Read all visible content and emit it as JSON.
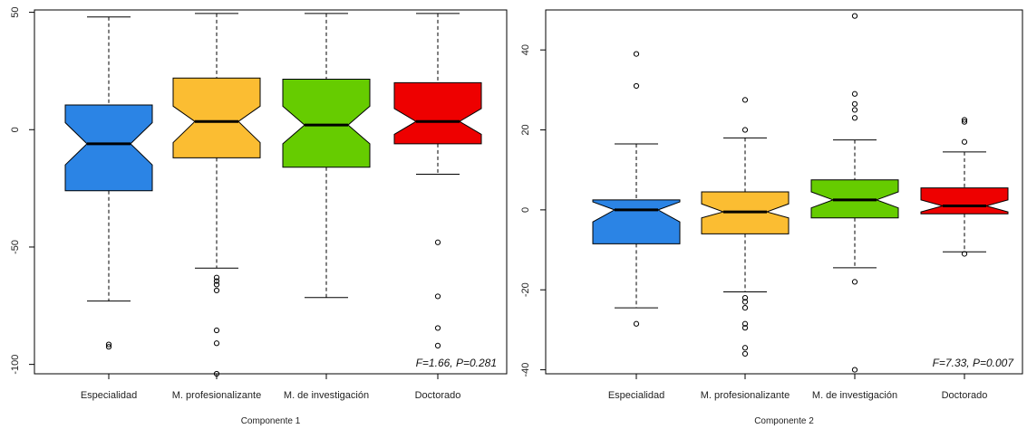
{
  "chart_data": [
    {
      "type": "boxplot",
      "xlabel": "Componente 1",
      "ylabel": "",
      "ylim": [
        -104,
        51
      ],
      "yticks": [
        50,
        0,
        -50,
        -100
      ],
      "ytick_labels": [
        "50",
        "0",
        "-50",
        "-100"
      ],
      "annotation": "F=1.66, P=0.281",
      "categories": [
        "Especialidad",
        "M. profesionalizante",
        "M. de investigación",
        "Doctorado"
      ],
      "colors": [
        "#2b84e5",
        "#fbbd32",
        "#66cc00",
        "#ee0000"
      ],
      "boxes": [
        {
          "category": "Especialidad",
          "whisker_low": -73,
          "q1": -26,
          "median": -6,
          "q3": 10.5,
          "whisker_high": 48,
          "notch_low": -15,
          "notch_high": 3,
          "outliers": [
            -91.5,
            -92.5
          ]
        },
        {
          "category": "M. profesionalizante",
          "whisker_low": -59,
          "q1": -12,
          "median": 3.5,
          "q3": 22,
          "whisker_high": 49.5,
          "notch_low": -5.5,
          "notch_high": 10,
          "outliers": [
            -63,
            -64.5,
            -66,
            -68.5,
            -85.5,
            -91,
            -104
          ]
        },
        {
          "category": "M. de investigación",
          "whisker_low": -71.5,
          "q1": -16,
          "median": 2,
          "q3": 21.5,
          "whisker_high": 49.5,
          "notch_low": -6,
          "notch_high": 10,
          "outliers": []
        },
        {
          "category": "Doctorado",
          "whisker_low": -19,
          "q1": -6,
          "median": 3.5,
          "q3": 20,
          "whisker_high": 49.5,
          "notch_low": -2,
          "notch_high": 9,
          "outliers": [
            -48,
            -71,
            -84.5,
            -92
          ]
        }
      ]
    },
    {
      "type": "boxplot",
      "xlabel": "Componente 2",
      "ylabel": "",
      "ylim": [
        -41,
        50
      ],
      "yticks": [
        40,
        20,
        0,
        -20,
        -40
      ],
      "ytick_labels": [
        "40",
        "20",
        "0",
        "-20",
        "-40"
      ],
      "annotation": "F=7.33, P=0.007",
      "categories": [
        "Especialidad",
        "M. profesionalizante",
        "M. de investigación",
        "Doctorado"
      ],
      "colors": [
        "#2b84e5",
        "#fbbd32",
        "#66cc00",
        "#ee0000"
      ],
      "boxes": [
        {
          "category": "Especialidad",
          "whisker_low": -24.5,
          "q1": -8.5,
          "median": 0,
          "q3": 2.5,
          "whisker_high": 16.5,
          "notch_low": -3,
          "notch_high": 2,
          "outliers": [
            31,
            39,
            -28.5
          ]
        },
        {
          "category": "M. profesionalizante",
          "whisker_low": -20.5,
          "q1": -6,
          "median": -0.5,
          "q3": 4.5,
          "whisker_high": 18,
          "notch_low": -2,
          "notch_high": 1.5,
          "outliers": [
            27.5,
            20,
            -22,
            -23,
            -24.5,
            -28.5,
            -29.5,
            -34.5,
            -36
          ]
        },
        {
          "category": "M. de investigación",
          "whisker_low": -14.5,
          "q1": -2,
          "median": 2.5,
          "q3": 7.5,
          "whisker_high": 17.5,
          "notch_low": 0.5,
          "notch_high": 4.5,
          "outliers": [
            48.5,
            29,
            26.5,
            25,
            23,
            -18,
            -40
          ]
        },
        {
          "category": "Doctorado",
          "whisker_low": -10.5,
          "q1": -1,
          "median": 1,
          "q3": 5.5,
          "whisker_high": 14.5,
          "notch_low": -0.5,
          "notch_high": 2.5,
          "outliers": [
            22.5,
            22,
            17,
            -11
          ]
        }
      ]
    }
  ]
}
